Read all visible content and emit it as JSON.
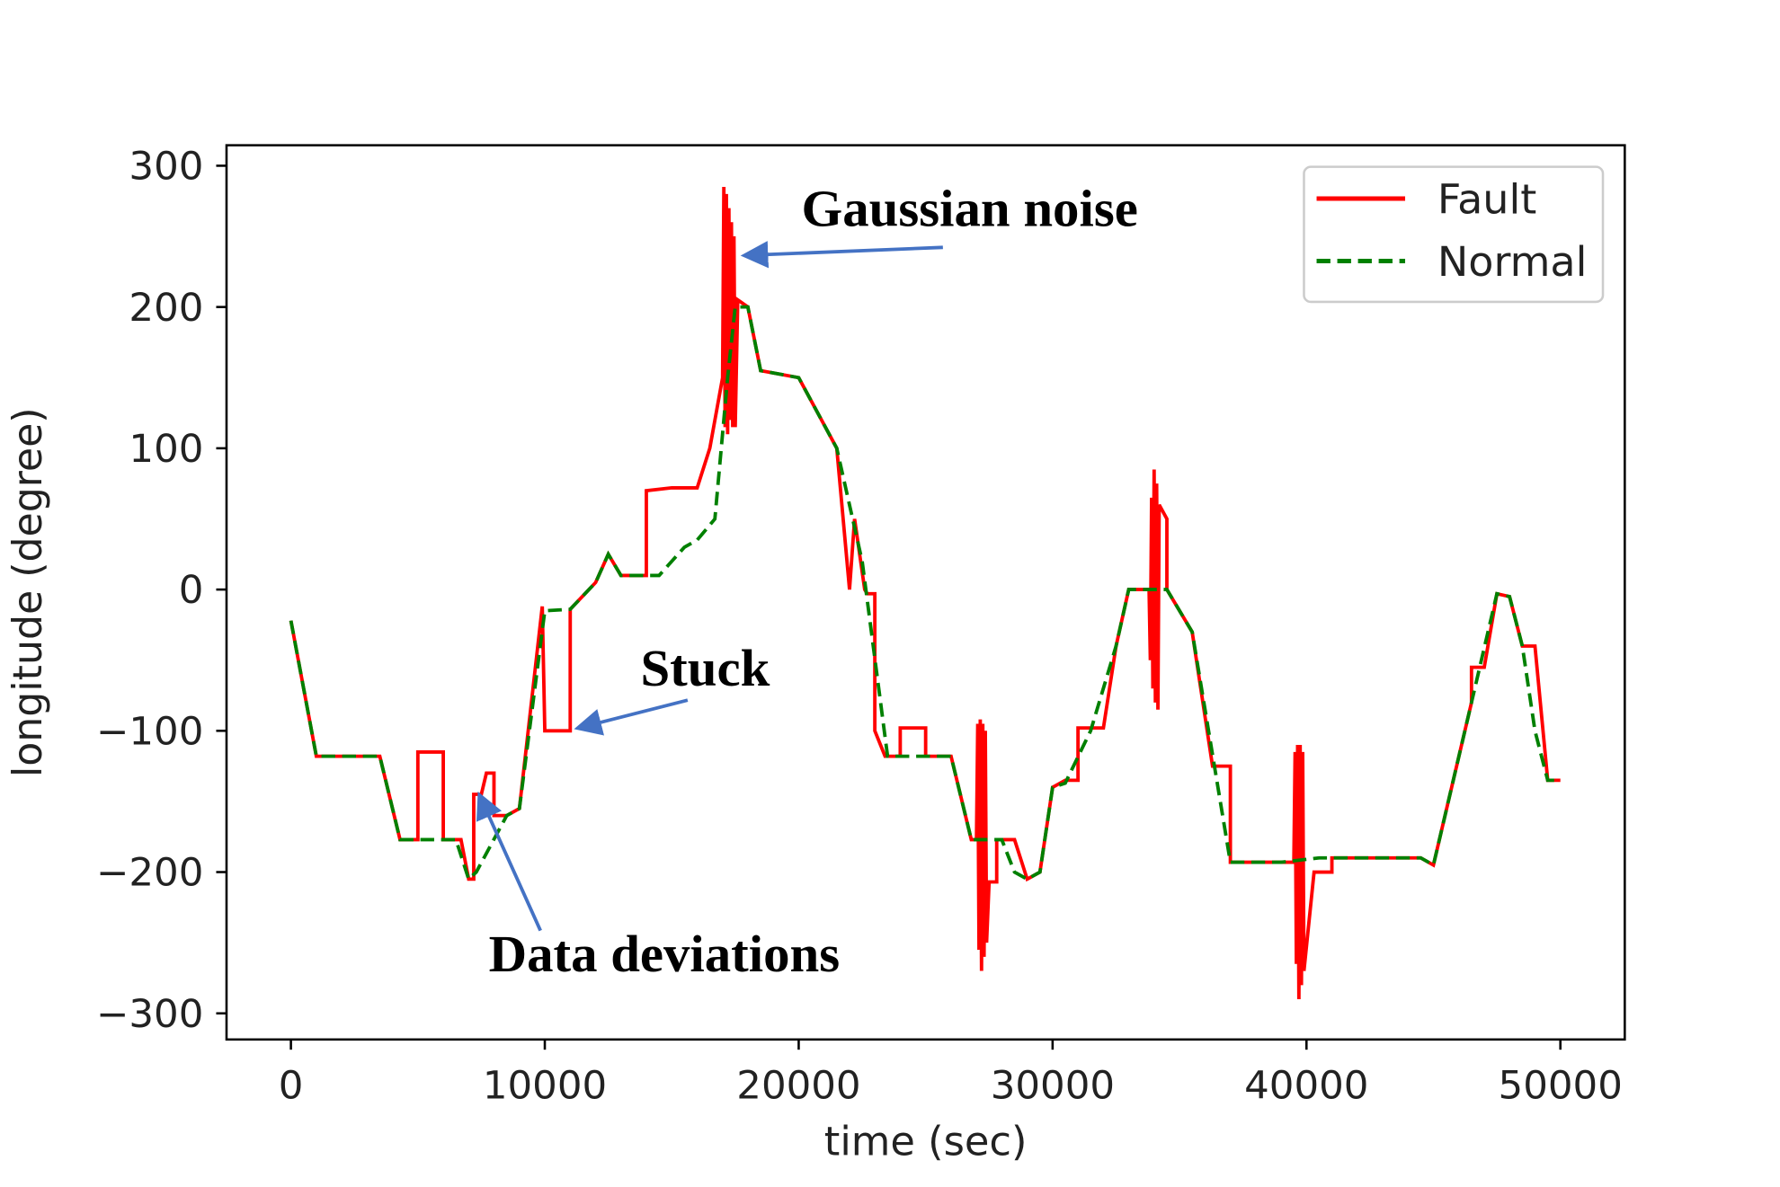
{
  "chart_data": {
    "type": "line",
    "x_label": "time (sec)",
    "y_label": "longitude (degree)",
    "xlim": [
      -2536,
      52536
    ],
    "ylim": [
      -318.5,
      314.5
    ],
    "xticks": [
      0,
      10000,
      20000,
      30000,
      40000,
      50000
    ],
    "yticks": [
      {
        "value": -300,
        "label": "−300"
      },
      {
        "value": -200,
        "label": "−200"
      },
      {
        "value": -100,
        "label": "−100"
      },
      0,
      100,
      200,
      300
    ],
    "grid": false,
    "legend": "upper right",
    "annotations": [
      "Gaussian noise",
      "Stuck",
      "Data deviations"
    ],
    "series": [
      {
        "name": "Fault",
        "color": "#ff0000",
        "style": "solid",
        "x": [
          0,
          1000,
          3500,
          4300,
          5000,
          5000,
          6000,
          6000,
          6700,
          7000,
          7200,
          7200,
          7500,
          7700,
          8000,
          8000,
          8500,
          9000,
          9900,
          10000,
          11000,
          11000,
          12000,
          12500,
          13000,
          14000,
          14000,
          15000,
          16000,
          16500,
          17000,
          17050,
          17100,
          17150,
          17200,
          17250,
          17300,
          17350,
          17400,
          17450,
          17500,
          17600,
          18000,
          18500,
          20000,
          21500,
          22000,
          22200,
          22600,
          22700,
          23000,
          23000,
          23400,
          24000,
          24000,
          25000,
          25000,
          26000,
          26800,
          27000,
          27050,
          27100,
          27150,
          27200,
          27250,
          27300,
          27350,
          27400,
          27500,
          27800,
          27800,
          28500,
          29000,
          29500,
          30000,
          30500,
          31000,
          31000,
          32000,
          32500,
          33000,
          33800,
          33850,
          33900,
          33950,
          34000,
          34050,
          34100,
          34150,
          34200,
          34500,
          34500,
          35500,
          36300,
          37000,
          37000,
          39500,
          39550,
          39600,
          39650,
          39700,
          39750,
          39800,
          39850,
          39900,
          40300,
          40500,
          41000,
          41000,
          44500,
          45000,
          46500,
          46500,
          47000,
          47500,
          48000,
          48500,
          49000,
          49500,
          50000
        ],
        "values": [
          -22,
          -118,
          -118,
          -177,
          -177,
          -115,
          -115,
          -177,
          -177,
          -205,
          -205,
          -145,
          -145,
          -130,
          -130,
          -160,
          -160,
          -155,
          -12,
          -100,
          -100,
          -14,
          5,
          25,
          10,
          10,
          70,
          72,
          72,
          100,
          150,
          285,
          115,
          280,
          110,
          270,
          120,
          260,
          115,
          250,
          115,
          205,
          200,
          155,
          150,
          100,
          0,
          50,
          0,
          -3,
          -3,
          -100,
          -118,
          -118,
          -98,
          -98,
          -118,
          -118,
          -177,
          -177,
          -95,
          -255,
          -92,
          -270,
          -95,
          -260,
          -100,
          -250,
          -207,
          -207,
          -177,
          -177,
          -205,
          -200,
          -140,
          -135,
          -135,
          -98,
          -98,
          -40,
          0,
          0,
          -50,
          65,
          -70,
          85,
          -80,
          75,
          -85,
          60,
          50,
          0,
          -30,
          -125,
          -125,
          -193,
          -193,
          -115,
          -265,
          -110,
          -290,
          -110,
          -280,
          -115,
          -270,
          -200,
          -200,
          -200,
          -190,
          -190,
          -195,
          -80,
          -55,
          -55,
          -3,
          -5,
          -40,
          -40,
          -135,
          -135
        ]
      },
      {
        "name": "Normal",
        "color": "#008000",
        "style": "dashed",
        "x": [
          0,
          1000,
          3500,
          4300,
          6500,
          7000,
          7300,
          8500,
          9000,
          10000,
          11000,
          12000,
          12500,
          13000,
          14500,
          15500,
          16000,
          16700,
          17200,
          17500,
          18000,
          18500,
          20000,
          21500,
          22500,
          23500,
          26000,
          26800,
          28000,
          28500,
          29000,
          29500,
          30000,
          30500,
          31500,
          32500,
          33000,
          34500,
          35500,
          37000,
          39000,
          40500,
          44500,
          45000,
          46500,
          47500,
          48000,
          48500,
          49000,
          49500,
          50000
        ],
        "values": [
          -22,
          -118,
          -118,
          -177,
          -177,
          -205,
          -200,
          -160,
          -155,
          -15,
          -14,
          5,
          25,
          10,
          10,
          30,
          35,
          50,
          150,
          200,
          200,
          155,
          150,
          100,
          20,
          -118,
          -118,
          -177,
          -177,
          -200,
          -205,
          -200,
          -140,
          -137,
          -100,
          -40,
          0,
          0,
          -30,
          -193,
          -193,
          -190,
          -190,
          -195,
          -80,
          -3,
          -5,
          -40,
          -100,
          -135,
          -135
        ]
      }
    ]
  }
}
